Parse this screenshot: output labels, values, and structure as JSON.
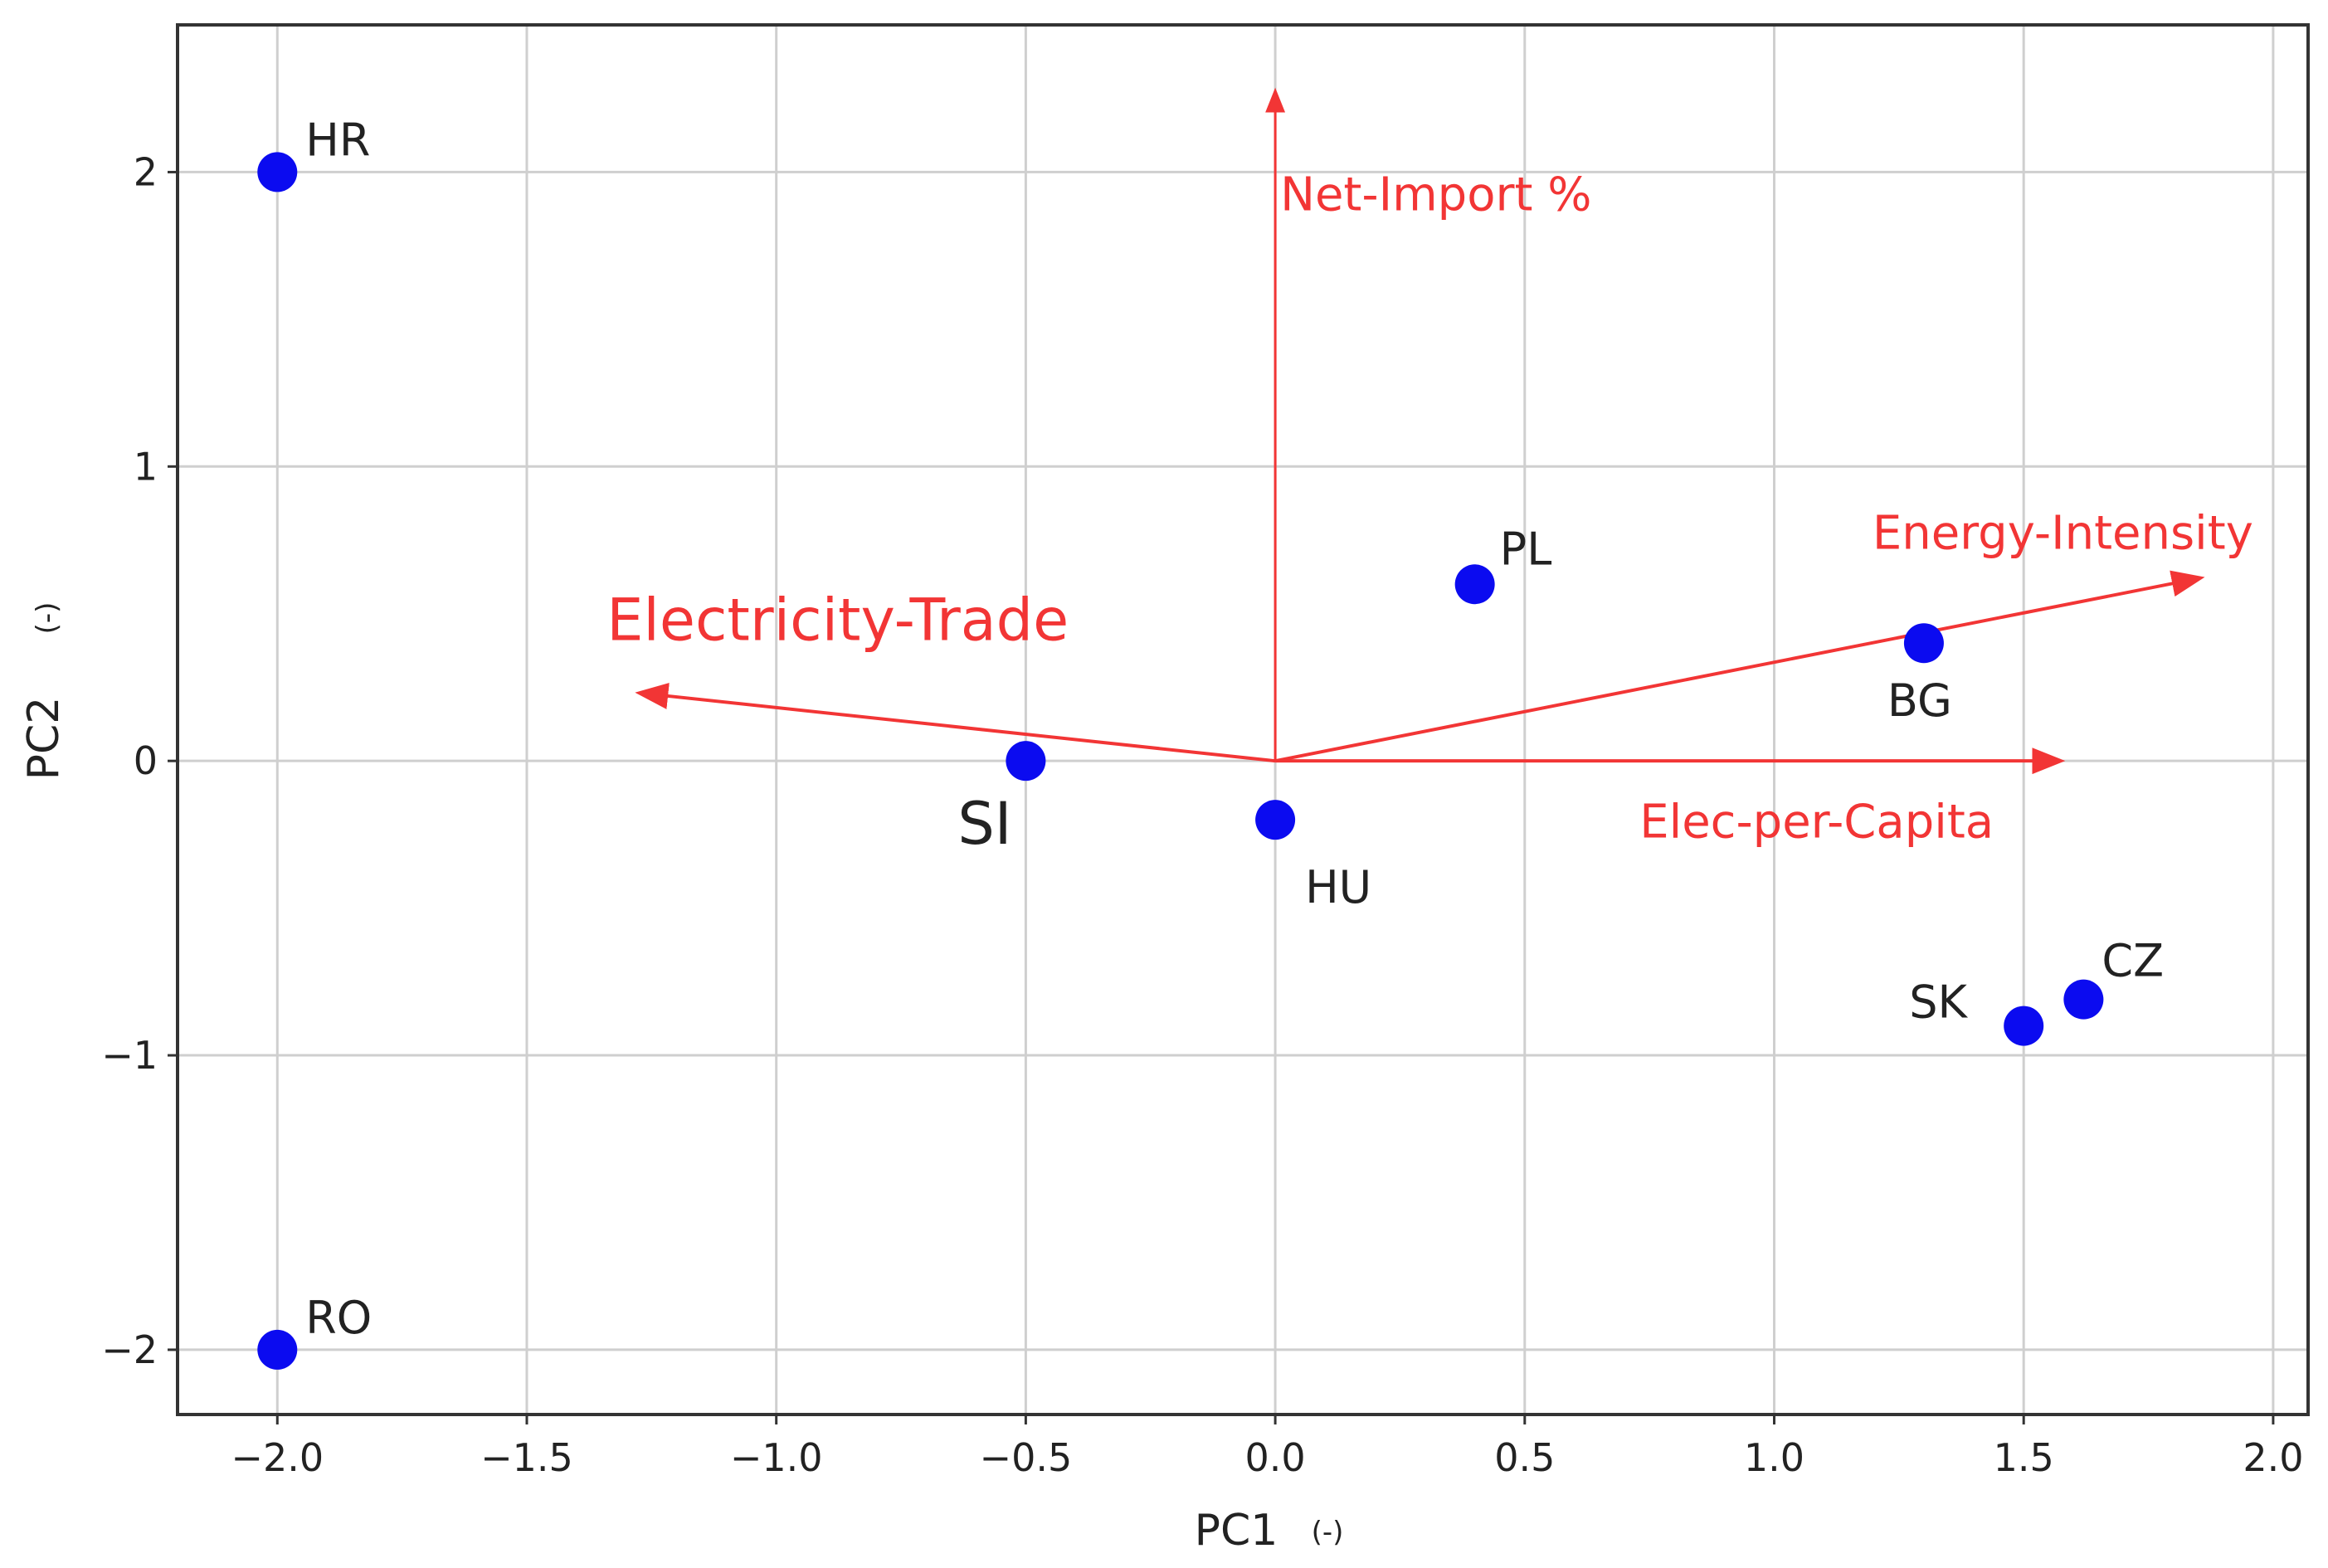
{
  "colors": {
    "point": "#0b0bf0",
    "loading": "#f23535",
    "grid": "#cfcfcf",
    "frame": "#333333"
  },
  "chart_data": {
    "type": "scatter",
    "title": "",
    "xlabel": "PC1",
    "xunit": "(-)",
    "ylabel": "PC2",
    "yunit": "(-)",
    "xlim": [
      -2.2,
      2.07
    ],
    "ylim": [
      -2.22,
      2.5
    ],
    "xticks": [
      -2.0,
      -1.5,
      -1.0,
      -0.5,
      0.0,
      0.5,
      1.0,
      1.5,
      2.0
    ],
    "xtick_labels": [
      "−2.0",
      "−1.5",
      "−1.0",
      "−0.5",
      "0.0",
      "0.5",
      "1.0",
      "1.5",
      "2.0"
    ],
    "yticks": [
      -2,
      -1,
      0,
      1,
      2
    ],
    "ytick_labels": [
      "−2",
      "−1",
      "0",
      "1",
      "2"
    ],
    "grid": true,
    "points": [
      {
        "label": "HR",
        "x": -2.0,
        "y": 2.0
      },
      {
        "label": "RO",
        "x": -2.0,
        "y": -2.0
      },
      {
        "label": "SI",
        "x": -0.5,
        "y": 0.0
      },
      {
        "label": "HU",
        "x": 0.0,
        "y": -0.2
      },
      {
        "label": "PL",
        "x": 0.4,
        "y": 0.6
      },
      {
        "label": "BG",
        "x": 1.3,
        "y": 0.4
      },
      {
        "label": "SK",
        "x": 1.5,
        "y": -0.9
      },
      {
        "label": "CZ",
        "x": 1.62,
        "y": -0.81
      }
    ],
    "loadings": [
      {
        "label": "Net-Import %",
        "x": 0.0,
        "y": 2.27
      },
      {
        "label": "Energy-Intensity",
        "x": 1.85,
        "y": 0.62
      },
      {
        "label": "Electricity-Trade",
        "x": -1.27,
        "y": 0.23
      },
      {
        "label": "Elec-per-Capita",
        "x": 1.57,
        "y": 0.0
      }
    ]
  }
}
